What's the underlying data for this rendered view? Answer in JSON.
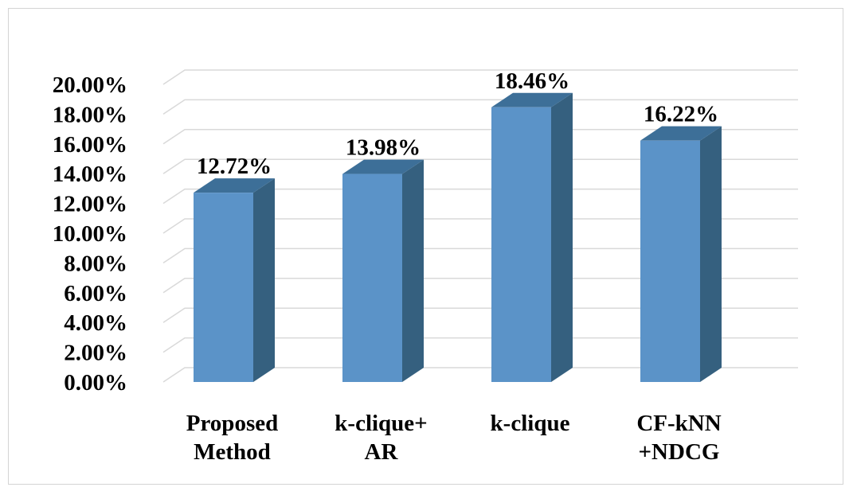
{
  "chart_data": {
    "type": "bar",
    "style": "3d-column",
    "categories": [
      [
        "Proposed",
        "Method"
      ],
      [
        "k-clique+",
        "AR"
      ],
      [
        "k-clique"
      ],
      [
        "CF-kNN",
        "+NDCG"
      ]
    ],
    "values": [
      12.72,
      13.98,
      18.46,
      16.22
    ],
    "data_labels": [
      "12.72%",
      "13.98%",
      "18.46%",
      "16.22%"
    ],
    "y_ticks": [
      "0.00%",
      "2.00%",
      "4.00%",
      "6.00%",
      "8.00%",
      "10.00%",
      "12.00%",
      "14.00%",
      "16.00%",
      "18.00%",
      "20.00%"
    ],
    "ylim": [
      0,
      20
    ],
    "grid": true,
    "title": "",
    "xlabel": "",
    "ylabel": "",
    "colors": {
      "front": "#5b93c8",
      "side": "#35607f",
      "top": "#3d6f98",
      "grid": "#d9d9d9"
    }
  }
}
